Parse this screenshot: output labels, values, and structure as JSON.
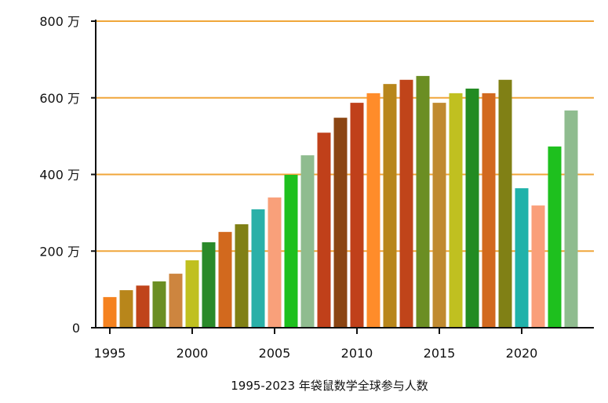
{
  "chart_data": {
    "type": "bar",
    "title": "1995-2023 年袋鼠数学全球参与人数",
    "xlabel": "",
    "ylabel": "",
    "ylim": [
      0,
      800
    ],
    "yticks": [
      0,
      200,
      400,
      600,
      800
    ],
    "ytick_labels": [
      "0",
      "200 万",
      "400 万",
      "600 万",
      "800 万"
    ],
    "xticks": [
      1995,
      2000,
      2005,
      2010,
      2015,
      2020
    ],
    "grid": true,
    "grid_color": "#f0a63a",
    "categories": [
      1995,
      1996,
      1997,
      1998,
      1999,
      2000,
      2001,
      2002,
      2003,
      2004,
      2005,
      2006,
      2007,
      2008,
      2009,
      2010,
      2011,
      2012,
      2013,
      2014,
      2015,
      2016,
      2017,
      2018,
      2019,
      2020,
      2021,
      2022,
      2023
    ],
    "values": [
      80,
      98,
      110,
      121,
      141,
      176,
      223,
      250,
      270,
      309,
      340,
      399,
      450,
      509,
      548,
      587,
      612,
      636,
      647,
      657,
      587,
      612,
      624,
      612,
      647,
      364,
      319,
      473,
      567
    ],
    "colors": [
      "#f5821f",
      "#b8861b",
      "#c0441a",
      "#6b8e23",
      "#cd853f",
      "#c0c020",
      "#2a8a2a",
      "#d2691e",
      "#808015",
      "#2ab0a8",
      "#f9a07a",
      "#1ec01e",
      "#8fbc8f",
      "#c0401a",
      "#8b4513",
      "#c0401a",
      "#ff8c2a",
      "#b8861b",
      "#c0441a",
      "#6b8e23",
      "#c08a30",
      "#c0c020",
      "#228b22",
      "#d2691e",
      "#808015",
      "#20b2aa",
      "#fa9f7a",
      "#1ec01e",
      "#8fbc8f"
    ]
  }
}
